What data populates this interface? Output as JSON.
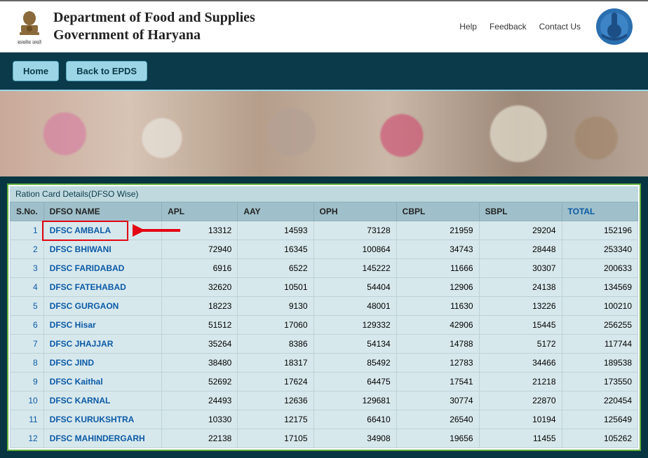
{
  "header": {
    "dept_line1": "Department of Food and Supplies",
    "dept_line2": "Government of Haryana",
    "emblem_caption": "सत्यमेव जयते",
    "links": {
      "help": "Help",
      "feedback": "Feedback",
      "contact": "Contact Us"
    }
  },
  "nav": {
    "home": "Home",
    "back": "Back to EPDS"
  },
  "section": {
    "title": "Ration Card Details(DFSO Wise)"
  },
  "columns": {
    "sno": "S.No.",
    "name": "DFSO NAME",
    "apl": "APL",
    "aay": "AAY",
    "oph": "OPH",
    "cbpl": "CBPL",
    "sbpl": "SBPL",
    "total": "TOTAL"
  },
  "rows": [
    {
      "sno": "1",
      "name": "DFSC AMBALA",
      "apl": "13312",
      "aay": "14593",
      "oph": "73128",
      "cbpl": "21959",
      "sbpl": "29204",
      "total": "152196"
    },
    {
      "sno": "2",
      "name": "DFSC BHIWANI",
      "apl": "72940",
      "aay": "16345",
      "oph": "100864",
      "cbpl": "34743",
      "sbpl": "28448",
      "total": "253340"
    },
    {
      "sno": "3",
      "name": "DFSC FARIDABAD",
      "apl": "6916",
      "aay": "6522",
      "oph": "145222",
      "cbpl": "11666",
      "sbpl": "30307",
      "total": "200633"
    },
    {
      "sno": "4",
      "name": "DFSC FATEHABAD",
      "apl": "32620",
      "aay": "10501",
      "oph": "54404",
      "cbpl": "12906",
      "sbpl": "24138",
      "total": "134569"
    },
    {
      "sno": "5",
      "name": "DFSC GURGAON",
      "apl": "18223",
      "aay": "9130",
      "oph": "48001",
      "cbpl": "11630",
      "sbpl": "13226",
      "total": "100210"
    },
    {
      "sno": "6",
      "name": "DFSC Hisar",
      "apl": "51512",
      "aay": "17060",
      "oph": "129332",
      "cbpl": "42906",
      "sbpl": "15445",
      "total": "256255"
    },
    {
      "sno": "7",
      "name": "DFSC JHAJJAR",
      "apl": "35264",
      "aay": "8386",
      "oph": "54134",
      "cbpl": "14788",
      "sbpl": "5172",
      "total": "117744"
    },
    {
      "sno": "8",
      "name": "DFSC JIND",
      "apl": "38480",
      "aay": "18317",
      "oph": "85492",
      "cbpl": "12783",
      "sbpl": "34466",
      "total": "189538"
    },
    {
      "sno": "9",
      "name": "DFSC Kaithal",
      "apl": "52692",
      "aay": "17624",
      "oph": "64475",
      "cbpl": "17541",
      "sbpl": "21218",
      "total": "173550"
    },
    {
      "sno": "10",
      "name": "DFSC KARNAL",
      "apl": "24493",
      "aay": "12636",
      "oph": "129681",
      "cbpl": "30774",
      "sbpl": "22870",
      "total": "220454"
    },
    {
      "sno": "11",
      "name": "DFSC KURUKSHTRA",
      "apl": "10330",
      "aay": "12175",
      "oph": "66410",
      "cbpl": "26540",
      "sbpl": "10194",
      "total": "125649"
    },
    {
      "sno": "12",
      "name": "DFSC MAHINDERGARH",
      "apl": "22138",
      "aay": "17105",
      "oph": "34908",
      "cbpl": "19656",
      "sbpl": "11455",
      "total": "105262"
    }
  ],
  "annotation": {
    "highlight_row_index": 0,
    "arrow_color": "#e30613"
  },
  "styling": {
    "navbar_bg": "#0b3a4a",
    "btn_bg": "#9cd6e6",
    "th_bg": "#9fc0ca",
    "td_bg": "#d7e8ec",
    "link_color": "#0b5aa6",
    "border_green": "#5fae3a"
  }
}
